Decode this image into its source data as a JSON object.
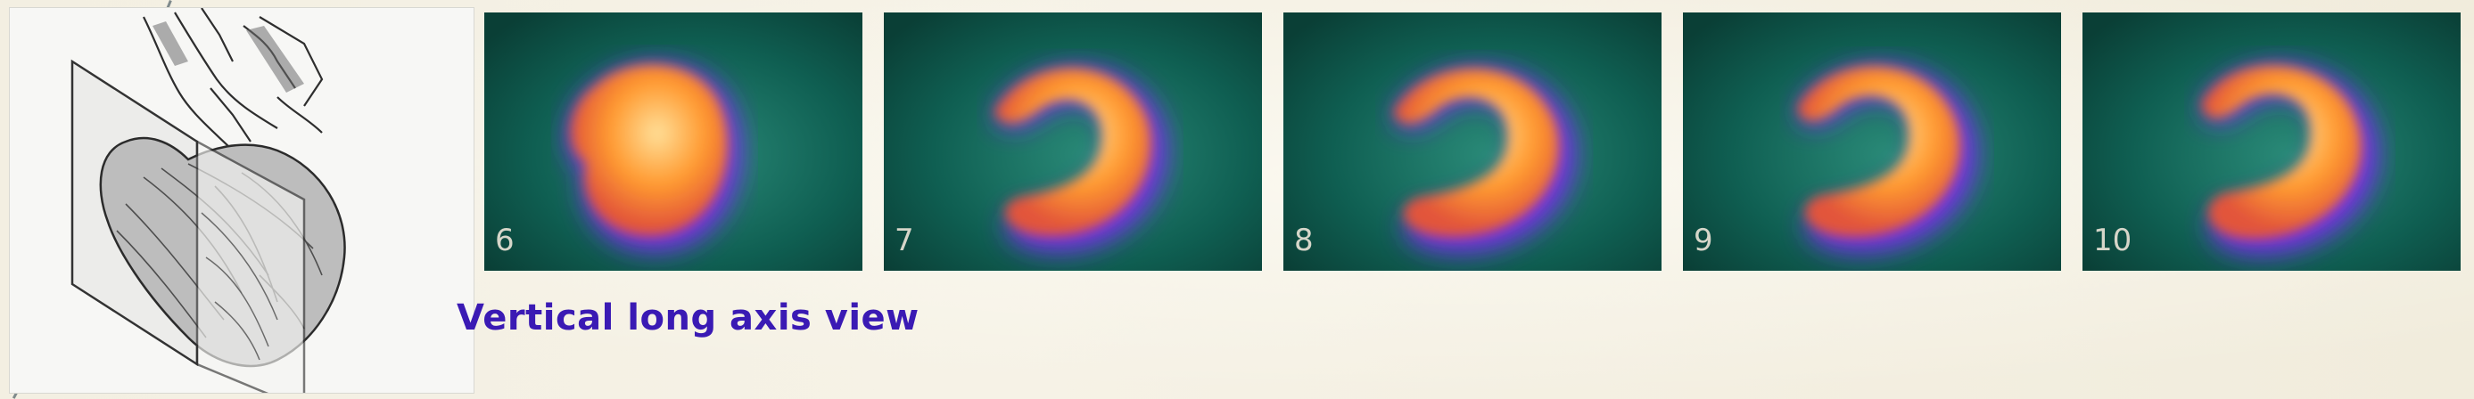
{
  "figure": {
    "caption": "Vertical long axis view"
  },
  "frames": [
    {
      "label": "6"
    },
    {
      "label": "7"
    },
    {
      "label": "8"
    },
    {
      "label": "9"
    },
    {
      "label": "10"
    }
  ],
  "colors": {
    "background": "#0f5f52",
    "halo": "#7a2cf0",
    "uptake": "#ff9a30",
    "hot": "#ffe09a",
    "caption": "#3a1ab4"
  },
  "icons": {
    "heart_sketch": "heart-plane-sketch-icon"
  }
}
